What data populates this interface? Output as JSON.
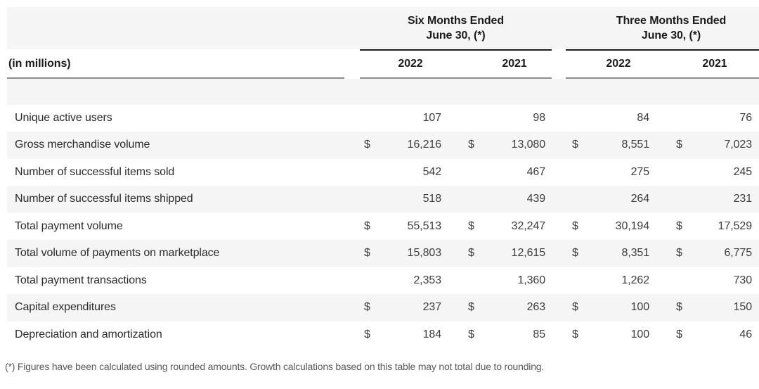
{
  "table": {
    "unit_label": "(in millions)",
    "currency_symbol": "$",
    "col_groups": [
      {
        "title_line1": "Six Months Ended",
        "title_line2": "June 30, (*)"
      },
      {
        "title_line1": "Three Months Ended",
        "title_line2": "June 30, (*)"
      }
    ],
    "year_headers": [
      "2022",
      "2021",
      "2022",
      "2021"
    ],
    "rows": [
      {
        "label": "Unique active users",
        "currency": false,
        "values": [
          "107",
          "98",
          "84",
          "76"
        ]
      },
      {
        "label": "Gross merchandise volume",
        "currency": true,
        "values": [
          "16,216",
          "13,080",
          "8,551",
          "7,023"
        ]
      },
      {
        "label": "Number of successful items sold",
        "currency": false,
        "values": [
          "542",
          "467",
          "275",
          "245"
        ]
      },
      {
        "label": "Number of successful items shipped",
        "currency": false,
        "values": [
          "518",
          "439",
          "264",
          "231"
        ]
      },
      {
        "label": "Total payment volume",
        "currency": true,
        "values": [
          "55,513",
          "32,247",
          "30,194",
          "17,529"
        ]
      },
      {
        "label": "Total volume of payments on marketplace",
        "currency": true,
        "values": [
          "15,803",
          "12,615",
          "8,351",
          "6,775"
        ]
      },
      {
        "label": "Total payment transactions",
        "currency": false,
        "values": [
          "2,353",
          "1,360",
          "1,262",
          "730"
        ]
      },
      {
        "label": "Capital expenditures",
        "currency": true,
        "values": [
          "237",
          "263",
          "100",
          "150"
        ]
      },
      {
        "label": "Depreciation and amortization",
        "currency": true,
        "values": [
          "184",
          "85",
          "100",
          "46"
        ]
      }
    ],
    "footnote": "(*) Figures have been calculated using rounded amounts. Growth calculations based on this table may not total due to rounding."
  },
  "colors": {
    "stripe": "#f5f5f6",
    "rule_dark": "#1c1c1c",
    "rule_gray": "#8e8e8e",
    "text_label": "#2b2b2b",
    "text_number": "#3d3d3d",
    "text_footnote": "#5a5a5a",
    "background": "#ffffff"
  }
}
